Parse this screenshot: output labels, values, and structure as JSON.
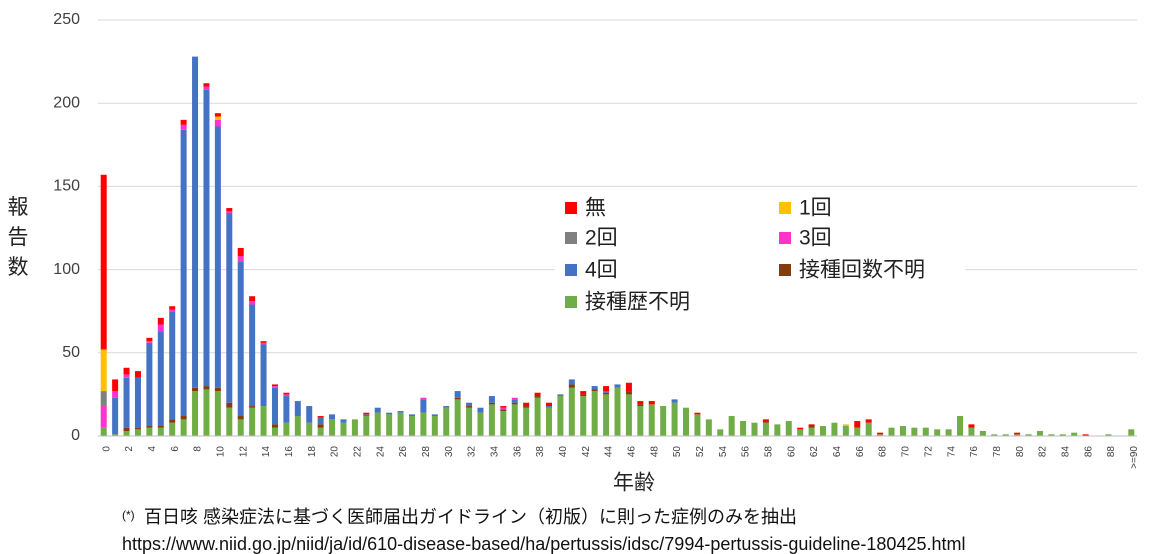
{
  "chart_data": {
    "type": "stacked_bar",
    "y_label": "報告数",
    "x_label": "年齢",
    "notes": [
      "(*)",
      "百日咳 感染症法に基づく医師届出ガイドライン（初版）に則った症例のみを抽出",
      "https://www.niid.go.jp/niid/ja/id/610-disease-based/ha/pertussis/idsc/7994-pertussis-guideline-180425.html"
    ],
    "categories": [
      "0",
      null,
      "2",
      null,
      "4",
      null,
      "6",
      null,
      "8",
      null,
      "10",
      null,
      "12",
      null,
      "14",
      null,
      "16",
      null,
      "18",
      null,
      "20",
      null,
      "22",
      null,
      "24",
      null,
      "26",
      null,
      "28",
      null,
      "30",
      null,
      "32",
      null,
      "34",
      null,
      "36",
      null,
      "38",
      null,
      "40",
      null,
      "42",
      null,
      "44",
      null,
      "46",
      null,
      "48",
      null,
      "50",
      null,
      "52",
      null,
      "54",
      null,
      "56",
      null,
      "58",
      null,
      "60",
      null,
      "62",
      null,
      "64",
      null,
      "66",
      null,
      "68",
      null,
      "70",
      null,
      "72",
      null,
      "74",
      null,
      "76",
      null,
      "78",
      null,
      "80",
      null,
      "82",
      null,
      "84",
      null,
      "86",
      null,
      "88",
      null,
      ">=90"
    ],
    "ylim": [
      0,
      250
    ],
    "yticks": [
      0,
      50,
      100,
      150,
      200,
      250
    ],
    "grid": true,
    "series": [
      {
        "name": "無",
        "color": "#ff0000",
        "values": [
          105,
          7,
          4,
          4,
          2,
          4,
          2,
          3,
          0,
          2,
          2,
          2,
          5,
          3,
          1,
          1,
          1,
          0,
          0,
          1,
          0,
          0,
          0,
          1,
          0,
          0,
          0,
          0,
          0,
          0,
          0,
          0,
          0,
          0,
          0,
          1,
          0,
          2,
          2,
          2,
          0,
          0,
          2,
          0,
          3,
          0,
          5,
          2,
          2,
          0,
          0,
          0,
          1,
          0,
          0,
          0,
          0,
          0,
          1,
          0,
          0,
          1,
          1,
          0,
          0,
          0,
          4,
          2,
          1,
          0,
          0,
          0,
          0,
          0,
          0,
          0,
          2,
          0,
          0,
          0,
          1,
          0,
          0,
          0,
          0,
          0,
          1,
          0,
          0,
          0,
          0
        ]
      },
      {
        "name": "1回",
        "color": "#ffc000",
        "values": [
          25,
          0,
          0,
          0,
          0,
          0,
          0,
          0,
          0,
          0,
          2,
          0,
          0,
          0,
          0,
          0,
          0,
          0,
          0,
          0,
          0,
          0,
          0,
          0,
          0,
          0,
          0,
          0,
          0,
          0,
          0,
          0,
          0,
          0,
          0,
          0,
          0,
          0,
          0,
          0,
          0,
          0,
          0,
          0,
          0,
          0,
          0,
          0,
          0,
          0,
          0,
          0,
          0,
          0,
          0,
          0,
          0,
          0,
          0,
          0,
          0,
          0,
          0,
          0,
          0,
          1,
          0,
          0,
          0,
          0,
          0,
          0,
          0,
          0,
          0,
          0,
          0,
          0,
          0,
          0,
          0,
          0,
          0,
          0,
          0,
          0,
          0,
          0,
          0,
          0,
          0
        ]
      },
      {
        "name": "2回",
        "color": "#808080",
        "values": [
          9,
          0,
          0,
          0,
          0,
          0,
          0,
          0,
          0,
          0,
          0,
          0,
          0,
          0,
          0,
          0,
          0,
          0,
          0,
          0,
          0,
          0,
          0,
          0,
          0,
          0,
          0,
          0,
          0,
          0,
          0,
          0,
          0,
          0,
          0,
          0,
          0,
          0,
          0,
          0,
          0,
          0,
          0,
          0,
          0,
          0,
          0,
          0,
          0,
          0,
          0,
          0,
          0,
          0,
          0,
          0,
          0,
          0,
          0,
          0,
          0,
          0,
          0,
          0,
          0,
          0,
          0,
          0,
          0,
          0,
          0,
          0,
          0,
          0,
          0,
          0,
          0,
          0,
          0,
          0,
          0,
          0,
          0,
          0,
          0,
          0,
          0,
          0,
          0,
          0,
          0
        ]
      },
      {
        "name": "3回",
        "color": "#ff33cc",
        "values": [
          13,
          4,
          2,
          0,
          1,
          4,
          1,
          3,
          0,
          2,
          4,
          1,
          3,
          2,
          1,
          1,
          1,
          0,
          0,
          0,
          0,
          0,
          0,
          0,
          0,
          0,
          0,
          0,
          1,
          0,
          0,
          0,
          0,
          0,
          0,
          1,
          1,
          0,
          0,
          0,
          0,
          0,
          0,
          0,
          0,
          0,
          0,
          0,
          0,
          0,
          0,
          0,
          0,
          0,
          0,
          0,
          0,
          0,
          0,
          0,
          0,
          0,
          0,
          0,
          0,
          0,
          0,
          0,
          0,
          0,
          0,
          0,
          0,
          0,
          0,
          0,
          0,
          0,
          0,
          0,
          0,
          0,
          0,
          0,
          0,
          0,
          0,
          0,
          0,
          0,
          0
        ]
      },
      {
        "name": "4回",
        "color": "#4472c4",
        "values": [
          0,
          22,
          30,
          30,
          50,
          57,
          65,
          172,
          199,
          178,
          157,
          114,
          93,
          61,
          37,
          22,
          16,
          9,
          10,
          4,
          3,
          2,
          0,
          1,
          3,
          1,
          1,
          1,
          8,
          1,
          1,
          4,
          2,
          3,
          4,
          0,
          2,
          0,
          0,
          1,
          1,
          3,
          0,
          2,
          1,
          2,
          0,
          0,
          0,
          0,
          2,
          0,
          0,
          0,
          0,
          0,
          0,
          0,
          0,
          0,
          0,
          0,
          0,
          0,
          0,
          0,
          0,
          0,
          0,
          0,
          0,
          0,
          0,
          0,
          0,
          0,
          0,
          0,
          0,
          0,
          0,
          0,
          0,
          0,
          0,
          0,
          0,
          0,
          0,
          0,
          0
        ]
      },
      {
        "name": "接種回数不明",
        "color": "#843c0c",
        "values": [
          0,
          0,
          2,
          1,
          1,
          1,
          2,
          2,
          2,
          2,
          2,
          3,
          2,
          1,
          0,
          2,
          0,
          0,
          0,
          2,
          0,
          0,
          0,
          0,
          0,
          0,
          0,
          0,
          0,
          0,
          0,
          1,
          1,
          0,
          1,
          1,
          1,
          1,
          1,
          0,
          0,
          2,
          1,
          1,
          1,
          0,
          2,
          1,
          0,
          0,
          0,
          0,
          0,
          0,
          0,
          0,
          0,
          0,
          1,
          0,
          0,
          0,
          1,
          0,
          0,
          0,
          0,
          0,
          0,
          0,
          0,
          0,
          0,
          0,
          0,
          0,
          0,
          0,
          0,
          0,
          0,
          0,
          0,
          0,
          0,
          0,
          0,
          0,
          0,
          0,
          0
        ]
      },
      {
        "name": "接種歴不明",
        "color": "#70ad47",
        "values": [
          5,
          1,
          3,
          4,
          5,
          5,
          8,
          10,
          27,
          28,
          27,
          17,
          10,
          17,
          18,
          5,
          8,
          12,
          8,
          5,
          10,
          8,
          10,
          12,
          14,
          13,
          14,
          12,
          14,
          12,
          17,
          22,
          17,
          14,
          19,
          15,
          19,
          17,
          23,
          17,
          24,
          29,
          24,
          27,
          25,
          29,
          25,
          18,
          19,
          18,
          20,
          17,
          13,
          10,
          4,
          12,
          9,
          8,
          8,
          7,
          9,
          4,
          5,
          6,
          8,
          6,
          5,
          8,
          1,
          5,
          6,
          5,
          5,
          4,
          4,
          12,
          5,
          3,
          1,
          1,
          1,
          1,
          3,
          1,
          1,
          2,
          0,
          0,
          1,
          0,
          4
        ]
      }
    ]
  }
}
